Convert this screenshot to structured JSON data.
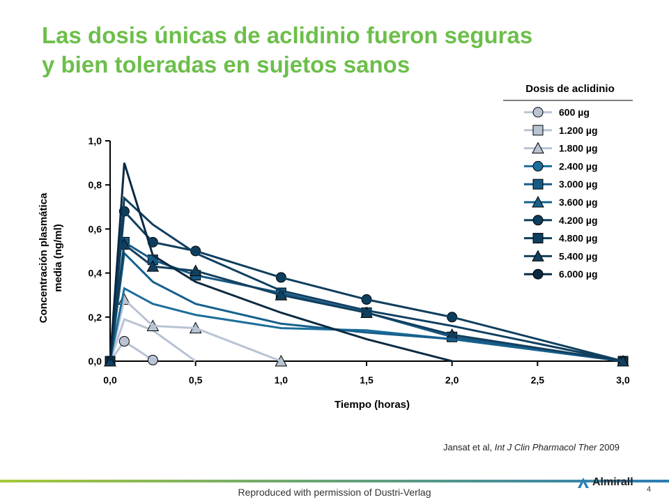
{
  "slide": {
    "title_line1": "Las dosis únicas de aclidinio fueron seguras",
    "title_line2": "y bien toleradas en sujetos sanos",
    "citation_authors": "Jansat et al, ",
    "citation_journal": "Int J Clin Pharmacol Ther",
    "citation_year": " 2009",
    "permission": "Reproduced with permission of Dustri-Verlag",
    "page_number": "4",
    "logo_text": "Almirall",
    "colors": {
      "title": "#6cbf4a",
      "footer_line_start": "#a6c93a",
      "footer_line_end": "#2a7db5",
      "text": "#000000"
    }
  },
  "chart_data": {
    "type": "line",
    "xlabel": "Tiempo (horas)",
    "ylabel_line1": "Concentración plasmática",
    "ylabel_line2": "media (ng/ml)",
    "xlim": [
      0,
      3
    ],
    "ylim": [
      0,
      1
    ],
    "x_ticks": [
      0,
      0.5,
      1,
      1.5,
      2,
      2.5,
      3
    ],
    "x_tick_labels": [
      "0,0",
      "0,5",
      "1,0",
      "1,5",
      "2,0",
      "2,5",
      "3,0"
    ],
    "y_ticks": [
      0,
      0.2,
      0.4,
      0.6,
      0.8,
      1
    ],
    "y_tick_labels": [
      "0,0",
      "0,2",
      "0,4",
      "0,6",
      "0,8",
      "1,0"
    ],
    "grid": false,
    "legend_title": "Dosis de aclidinio",
    "legend_position": "top-right",
    "series": [
      {
        "name": "600 µg",
        "marker": "circle",
        "color": "#b8c3d4",
        "fill": "#b8c3d4",
        "line": "#b8c3d4",
        "x": [
          0,
          0.083,
          0.25
        ],
        "y": [
          0,
          0.09,
          0.005
        ]
      },
      {
        "name": "1.200 µg",
        "marker": "square",
        "color": "#b8c3d4",
        "fill": "#b8c3d4",
        "line": "#b8c3d4",
        "x": [
          0,
          0.083,
          0.25,
          0.5
        ],
        "y": [
          0,
          0.19,
          0.14,
          0
        ]
      },
      {
        "name": "1.800 µg",
        "marker": "triangle",
        "color": "#b8c3d4",
        "fill": "#b8c3d4",
        "line": "#b8c3d4",
        "x": [
          0,
          0.083,
          0.25,
          0.5,
          1.0
        ],
        "y": [
          0,
          0.28,
          0.16,
          0.15,
          0
        ]
      },
      {
        "name": "2.400 µg",
        "marker": "circle",
        "color": "#1c6e9c",
        "fill": "#1c6e9c",
        "line": "#1c6e9c",
        "x": [
          0,
          0.083,
          0.25,
          0.5,
          1.0,
          1.5,
          2.0
        ],
        "y": [
          0,
          0.33,
          0.26,
          0.21,
          0.15,
          0.14,
          0.1
        ]
      },
      {
        "name": "3.000 µg",
        "marker": "square",
        "color": "#165a86",
        "fill": "#165a86",
        "line": "#165a86",
        "x": [
          0,
          0.083,
          0.25,
          0.5,
          1.0,
          1.5,
          2.0,
          3.0
        ],
        "y": [
          0,
          0.54,
          0.46,
          0.39,
          0.31,
          0.22,
          0.11,
          0
        ]
      },
      {
        "name": "3.600 µg",
        "marker": "triangle",
        "color": "#16608c",
        "fill": "#16608c",
        "line": "#16608c",
        "x": [
          0,
          0.083,
          0.25,
          0.5,
          1.0,
          1.5,
          2.0,
          3.0
        ],
        "y": [
          0,
          0.49,
          0.36,
          0.26,
          0.17,
          0.13,
          0.1,
          0
        ]
      },
      {
        "name": "4.200 µg",
        "marker": "circle",
        "color": "#0e3e5c",
        "fill": "#0e3e5c",
        "line": "#0e3e5c",
        "x": [
          0,
          0.083,
          0.25,
          0.5,
          1.0,
          1.5,
          2.0,
          3.0
        ],
        "y": [
          0,
          0.68,
          0.54,
          0.5,
          0.38,
          0.28,
          0.2,
          0
        ]
      },
      {
        "name": "4.800 µg",
        "marker": "square",
        "color": "#0f3f60",
        "fill": "#0f3f60",
        "line": "#0f3f60",
        "x": [
          0,
          0.083,
          0.25,
          0.5,
          1.0,
          1.5,
          2.0,
          3.0
        ],
        "y": [
          0,
          0.74,
          0.62,
          0.49,
          0.32,
          0.23,
          0.16,
          0
        ]
      },
      {
        "name": "5.400 µg",
        "marker": "triangle",
        "color": "#123f5e",
        "fill": "#123f5e",
        "line": "#123f5e",
        "x": [
          0,
          0.083,
          0.25,
          0.5,
          1.0,
          1.5,
          2.0,
          3.0
        ],
        "y": [
          0,
          0.53,
          0.43,
          0.41,
          0.3,
          0.22,
          0.12,
          0
        ]
      },
      {
        "name": "6.000 µg",
        "marker": "circle",
        "color": "#0a2a42",
        "fill": "#0a2a42",
        "line": "#0a2a42",
        "x": [
          0,
          0.083,
          0.25,
          0.5,
          1.0,
          1.5,
          2.0
        ],
        "y": [
          0,
          0.9,
          0.48,
          0.36,
          0.22,
          0.1,
          0
        ]
      }
    ]
  }
}
